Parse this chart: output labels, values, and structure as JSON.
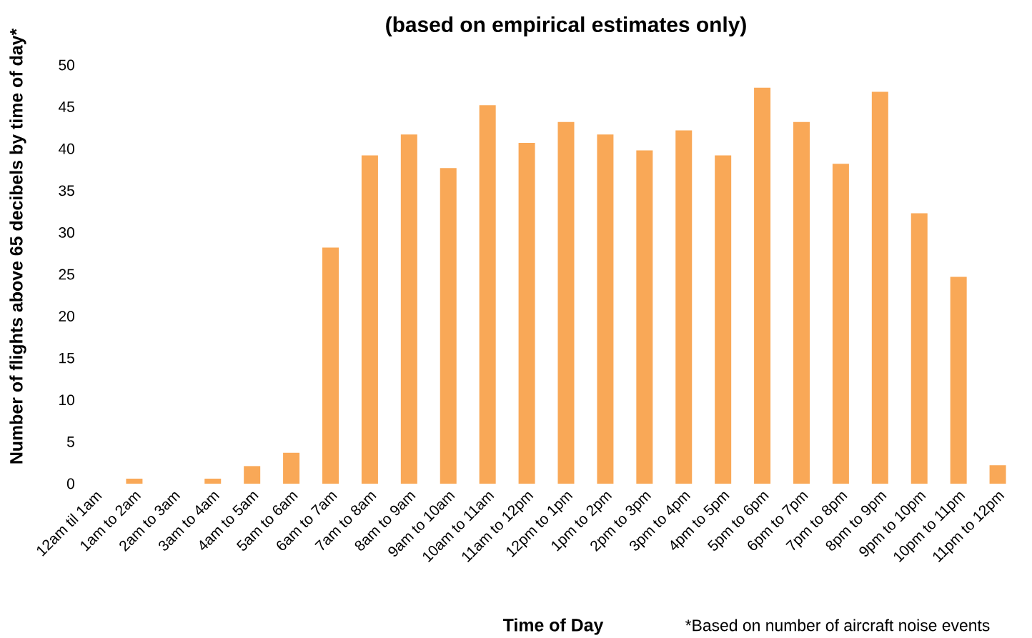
{
  "chart_data": {
    "type": "bar",
    "title": "(based on empirical estimates only)",
    "xlabel": "Time of Day",
    "ylabel": "Number of flights above 65 decibels by time of day*",
    "annotations": [
      "*Based on number of aircraft noise events"
    ],
    "categories": [
      "12am til 1am",
      "1am to 2am",
      "2am to 3am",
      "3am to 4am",
      "4am to 5am",
      "5am to 6am",
      "6am to 7am",
      "7am to 8am",
      "8am to 9am",
      "9am to 10am",
      "10am to 11am",
      "11am to 12pm",
      "12pm to 1pm",
      "1pm to 2pm",
      "2pm to 3pm",
      "3pm to 4pm",
      "4pm to 5pm",
      "5pm to 6pm",
      "6pm to 7pm",
      "7pm to 8pm",
      "8pm to 9pm",
      "9pm to 10pm",
      "10pm to 11pm",
      "11pm to 12pm"
    ],
    "values": [
      0,
      0.6,
      0,
      0.6,
      2.1,
      3.7,
      28.2,
      39.2,
      41.7,
      37.7,
      45.2,
      40.7,
      43.2,
      41.7,
      39.8,
      42.2,
      39.2,
      47.3,
      43.2,
      38.2,
      46.8,
      32.3,
      24.7,
      2.2
    ],
    "color": "#f9a857",
    "ylim": [
      0,
      50
    ],
    "yticks": [
      0,
      5,
      10,
      15,
      20,
      25,
      30,
      35,
      40,
      45,
      50
    ],
    "grid": false
  }
}
